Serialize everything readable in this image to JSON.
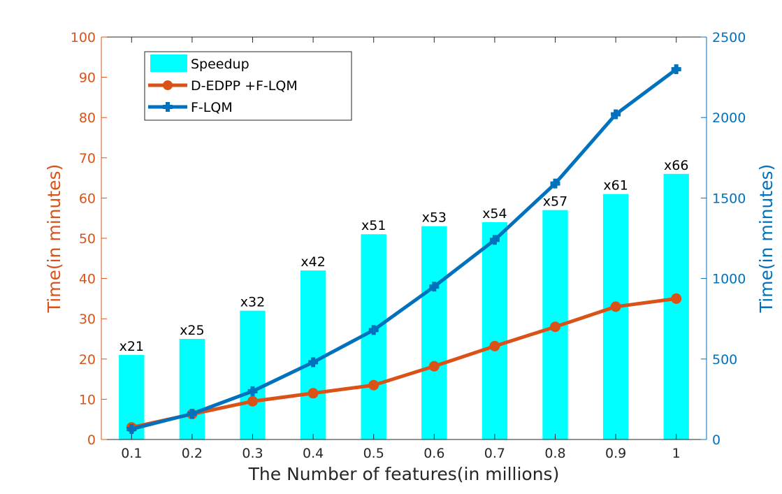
{
  "chart_data": {
    "type": "bar",
    "title": "",
    "xlabel": "The Number of features(in millions)",
    "ylabel_left": "Time(in minutes)",
    "ylabel_right": "Time(in minutes)",
    "categories": [
      "0.1",
      "0.2",
      "0.3",
      "0.4",
      "0.5",
      "0.6",
      "0.7",
      "0.8",
      "0.9",
      "1"
    ],
    "ylim_left": [
      0,
      100
    ],
    "yticks_left": [
      "0",
      "10",
      "20",
      "30",
      "40",
      "50",
      "60",
      "70",
      "80",
      "90",
      "100"
    ],
    "ylim_right": [
      0,
      2500
    ],
    "yticks_right": [
      "0",
      "500",
      "1000",
      "1500",
      "2000",
      "2500"
    ],
    "legend_position": "top-left",
    "grid": false,
    "series": [
      {
        "name": "Speedup",
        "kind": "bar",
        "axis": "left",
        "color": "#00ffff",
        "values": [
          21,
          25,
          32,
          42,
          51,
          53,
          54,
          57,
          61,
          66
        ],
        "labels": [
          "x21",
          "x25",
          "x32",
          "x42",
          "x51",
          "x53",
          "x54",
          "x57",
          "x61",
          "x66"
        ]
      },
      {
        "name": "D-EDPP +F-LQM",
        "kind": "line",
        "axis": "left",
        "color": "#d95319",
        "marker": "circle",
        "values": [
          3,
          6.3,
          9.5,
          11.5,
          13.5,
          18.2,
          23.2,
          28,
          33,
          35
        ]
      },
      {
        "name": "F-LQM",
        "kind": "line",
        "axis": "right",
        "color": "#0072bd",
        "marker": "plus",
        "values": [
          65,
          160,
          300,
          480,
          680,
          950,
          1240,
          1590,
          2020,
          2300
        ]
      }
    ]
  }
}
